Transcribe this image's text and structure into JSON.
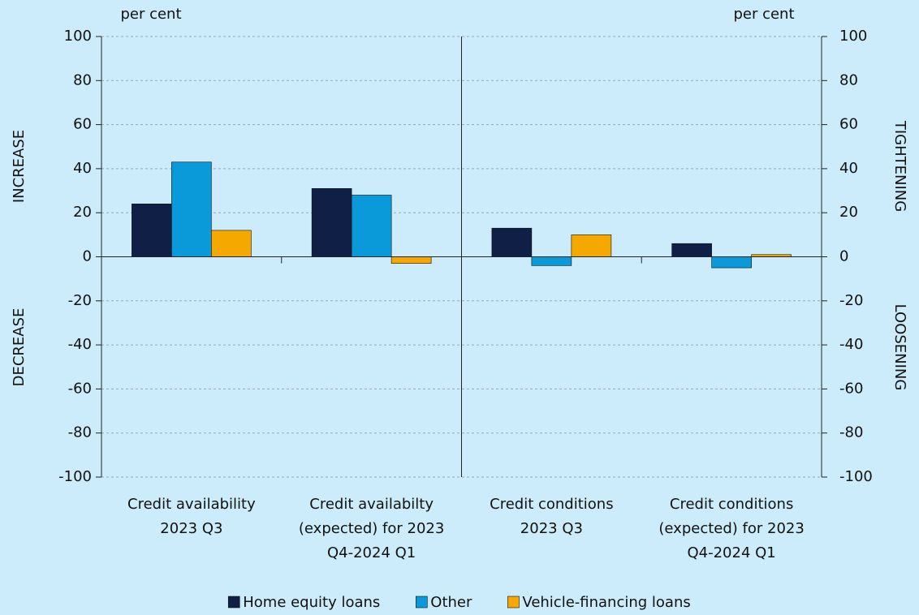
{
  "chart_data": {
    "type": "bar",
    "ylabel": "per cent",
    "y2label": "per cent",
    "annotations": {
      "upper_left": "INCREASE",
      "lower_left": "DECREASE",
      "upper_right": "TIGHTENING",
      "lower_right": "LOOSENING"
    },
    "categories": [
      [
        "Credit availability",
        "2023 Q3"
      ],
      [
        "Credit availabilty",
        "(expected) for 2023",
        "Q4-2024 Q1"
      ],
      [
        "Credit conditions",
        "2023 Q3"
      ],
      [
        "Credit conditions",
        "(expected) for 2023",
        "Q4-2024 Q1"
      ]
    ],
    "series": [
      {
        "name": "Home equity loans",
        "color": "#0f1f45",
        "values": [
          24,
          31,
          13,
          6
        ]
      },
      {
        "name": "Other",
        "color": "#0b9ad9",
        "values": [
          43,
          28,
          -4,
          -5
        ]
      },
      {
        "name": "Vehicle-financing loans",
        "color": "#f5a800",
        "values": [
          12,
          -3,
          10,
          1
        ]
      }
    ],
    "ylim": [
      -100,
      100
    ],
    "yticks": [
      -100,
      -80,
      -60,
      -40,
      -20,
      0,
      20,
      40,
      60,
      80,
      100
    ],
    "y2lim": [
      -100,
      100
    ],
    "y2ticks": [
      -100,
      -80,
      -60,
      -40,
      -20,
      0,
      20,
      40,
      60,
      80,
      100
    ],
    "grid": true,
    "legend": "bottom"
  }
}
